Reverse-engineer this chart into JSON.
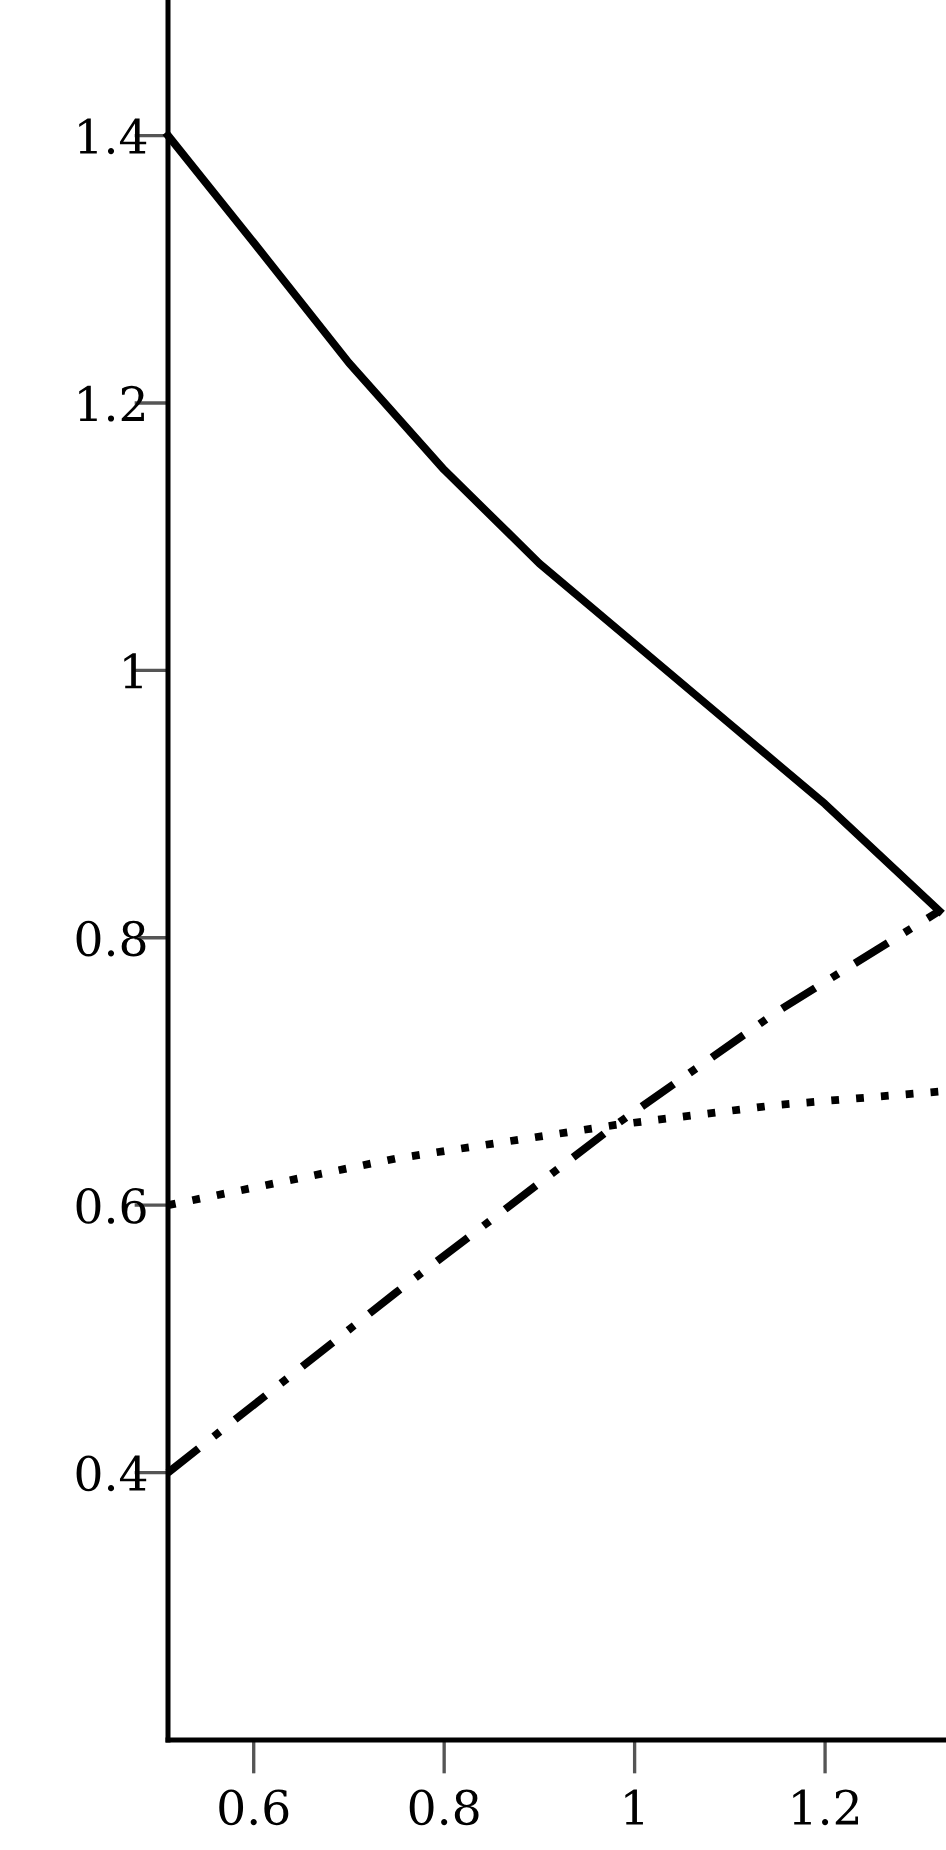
{
  "chart_data": {
    "type": "line",
    "xlim": [
      0.51,
      1.325
    ],
    "ylim": [
      0.2,
      1.5
    ],
    "xticks": [
      0.6,
      0.8,
      1,
      1.2
    ],
    "yticks": [
      0.4,
      0.6,
      0.8,
      1,
      1.2,
      1.4
    ],
    "series": [
      {
        "color": "#000000",
        "line_style": "solid",
        "x": [
          0.51,
          0.6,
          0.7,
          0.8,
          0.9,
          1.0,
          1.1,
          1.2,
          1.32
        ],
        "values": [
          1.4,
          1.32,
          1.23,
          1.15,
          1.08,
          1.02,
          0.96,
          0.9,
          0.82
        ]
      },
      {
        "color": "#000000",
        "line_style": "dotted",
        "x": [
          0.51,
          0.75,
          0.98,
          1.15,
          1.32
        ],
        "values": [
          0.6,
          0.635,
          0.66,
          0.675,
          0.685
        ]
      },
      {
        "color": "#000000",
        "line_style": "dashdot",
        "x": [
          0.51,
          0.75,
          0.98,
          1.15,
          1.32
        ],
        "values": [
          0.4,
          0.535,
          0.66,
          0.745,
          0.82
        ]
      }
    ]
  }
}
